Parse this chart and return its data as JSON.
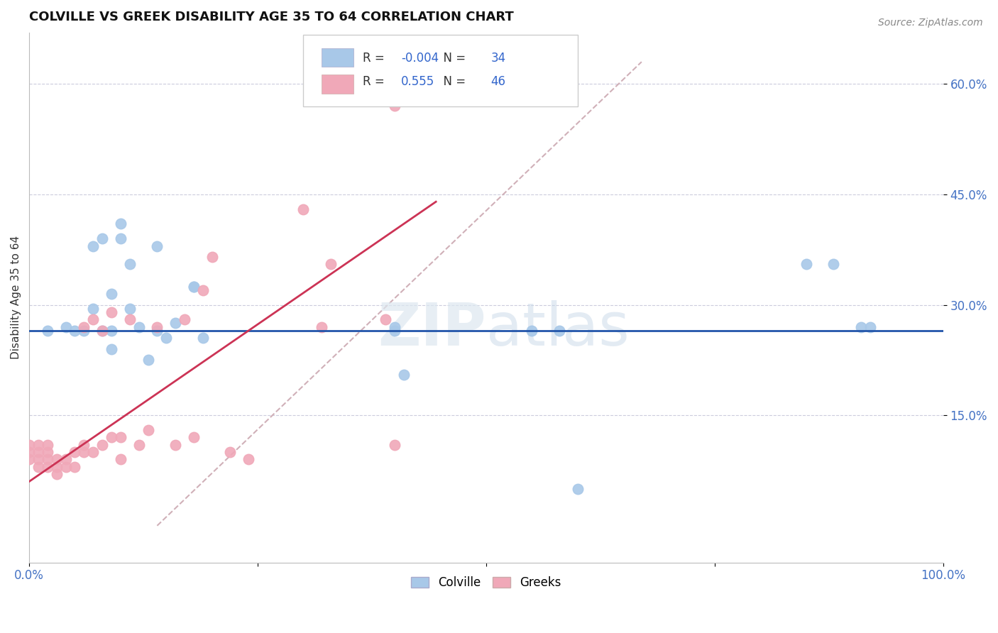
{
  "title": "COLVILLE VS GREEK DISABILITY AGE 35 TO 64 CORRELATION CHART",
  "source": "Source: ZipAtlas.com",
  "ylabel": "Disability Age 35 to 64",
  "xlim": [
    0.0,
    1.0
  ],
  "ylim": [
    -0.05,
    0.67
  ],
  "yticks": [
    0.15,
    0.3,
    0.45,
    0.6
  ],
  "ytick_labels": [
    "15.0%",
    "30.0%",
    "45.0%",
    "60.0%"
  ],
  "xticks": [
    0.0,
    0.25,
    0.5,
    0.75,
    1.0
  ],
  "xtick_labels": [
    "0.0%",
    "",
    "",
    "",
    "100.0%"
  ],
  "legend_blue_r": "-0.004",
  "legend_blue_n": "34",
  "legend_pink_r": "0.555",
  "legend_pink_n": "46",
  "blue_color": "#a8c8e8",
  "pink_color": "#f0a8b8",
  "blue_line_color": "#2255aa",
  "pink_line_color": "#cc3355",
  "ref_line_color": "#d0b0b8",
  "colville_x": [
    0.02,
    0.04,
    0.05,
    0.06,
    0.07,
    0.07,
    0.08,
    0.08,
    0.09,
    0.09,
    0.09,
    0.1,
    0.1,
    0.11,
    0.11,
    0.12,
    0.13,
    0.14,
    0.14,
    0.15,
    0.16,
    0.18,
    0.18,
    0.19,
    0.4,
    0.4,
    0.41,
    0.55,
    0.58,
    0.6,
    0.85,
    0.88,
    0.91,
    0.92
  ],
  "colville_y": [
    0.265,
    0.27,
    0.265,
    0.265,
    0.295,
    0.38,
    0.265,
    0.39,
    0.315,
    0.265,
    0.24,
    0.41,
    0.39,
    0.355,
    0.295,
    0.27,
    0.225,
    0.38,
    0.265,
    0.255,
    0.275,
    0.325,
    0.325,
    0.255,
    0.265,
    0.27,
    0.205,
    0.265,
    0.265,
    0.05,
    0.355,
    0.355,
    0.27,
    0.27
  ],
  "greeks_x": [
    0.0,
    0.0,
    0.0,
    0.01,
    0.01,
    0.01,
    0.01,
    0.02,
    0.02,
    0.02,
    0.02,
    0.03,
    0.03,
    0.03,
    0.04,
    0.04,
    0.05,
    0.05,
    0.06,
    0.06,
    0.06,
    0.07,
    0.07,
    0.08,
    0.08,
    0.09,
    0.09,
    0.1,
    0.1,
    0.11,
    0.12,
    0.13,
    0.14,
    0.16,
    0.17,
    0.18,
    0.19,
    0.2,
    0.22,
    0.24,
    0.3,
    0.32,
    0.33,
    0.39,
    0.4,
    0.4
  ],
  "greeks_y": [
    0.09,
    0.1,
    0.11,
    0.08,
    0.09,
    0.1,
    0.11,
    0.08,
    0.09,
    0.1,
    0.11,
    0.07,
    0.08,
    0.09,
    0.08,
    0.09,
    0.08,
    0.1,
    0.1,
    0.11,
    0.27,
    0.1,
    0.28,
    0.11,
    0.265,
    0.12,
    0.29,
    0.09,
    0.12,
    0.28,
    0.11,
    0.13,
    0.27,
    0.11,
    0.28,
    0.12,
    0.32,
    0.365,
    0.1,
    0.09,
    0.43,
    0.27,
    0.355,
    0.28,
    0.11,
    0.57
  ],
  "blue_line_y": 0.265,
  "pink_line_x0": 0.0,
  "pink_line_y0": 0.06,
  "pink_line_x1": 0.445,
  "pink_line_y1": 0.44,
  "ref_line_x0": 0.14,
  "ref_line_y0": 0.0,
  "ref_line_x1": 0.67,
  "ref_line_y1": 0.63
}
